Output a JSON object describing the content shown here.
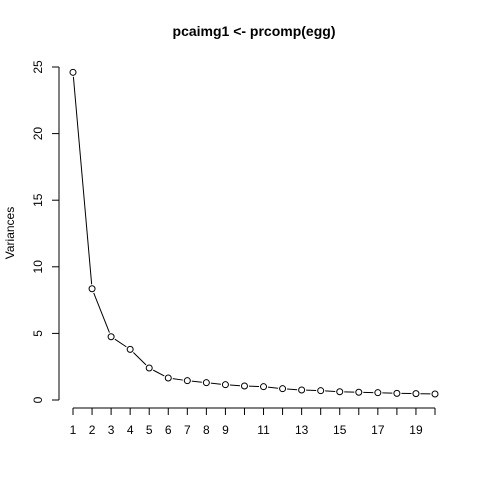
{
  "chart_data": {
    "type": "line",
    "title": "pcaimg1 <- prcomp(egg)",
    "xlabel": "",
    "ylabel": "Variances",
    "x": [
      1,
      2,
      3,
      4,
      5,
      6,
      7,
      8,
      9,
      10,
      11,
      12,
      13,
      14,
      15,
      16,
      17,
      18,
      19,
      20
    ],
    "values": [
      24.6,
      8.35,
      4.75,
      3.8,
      2.4,
      1.65,
      1.45,
      1.3,
      1.15,
      1.05,
      1.0,
      0.85,
      0.75,
      0.7,
      0.62,
      0.58,
      0.55,
      0.5,
      0.48,
      0.45
    ],
    "x_tick_labels": [
      "1",
      "2",
      "3",
      "4",
      "5",
      "6",
      "7",
      "8",
      "9",
      "11",
      "13",
      "15",
      "17",
      "19"
    ],
    "x_tick_label_positions": [
      1,
      2,
      3,
      4,
      5,
      6,
      7,
      8,
      9,
      11,
      13,
      15,
      17,
      19
    ],
    "x_tick_positions": [
      1,
      2,
      3,
      4,
      5,
      6,
      7,
      8,
      9,
      10,
      11,
      12,
      13,
      14,
      15,
      16,
      17,
      18,
      19,
      20
    ],
    "y_ticks": [
      0,
      5,
      10,
      15,
      20,
      25
    ],
    "ylim": [
      0,
      25
    ],
    "xlim": [
      1,
      20
    ],
    "grid": false,
    "markers": "open-circle",
    "line": true
  }
}
